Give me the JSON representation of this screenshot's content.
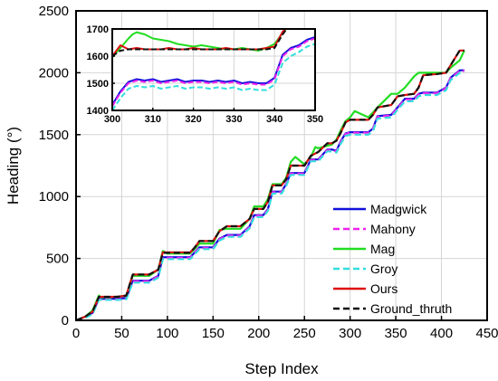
{
  "chart_data": {
    "type": "line",
    "title": "",
    "xlabel": "Step Index",
    "ylabel": "Heading (°)",
    "xlim": [
      0,
      450
    ],
    "ylim": [
      0,
      2500
    ],
    "xticks": [
      0,
      50,
      100,
      150,
      200,
      250,
      300,
      350,
      400,
      450
    ],
    "yticks": [
      0,
      500,
      1000,
      1500,
      2000,
      2500
    ],
    "grid": true,
    "legend_position": "bottom-right",
    "series": [
      {
        "name": "Madgwick",
        "color": "#1010dd",
        "dash": "solid",
        "x": [
          0,
          10,
          18,
          25,
          45,
          55,
          62,
          80,
          90,
          95,
          125,
          130,
          135,
          150,
          157,
          165,
          180,
          190,
          195,
          205,
          210,
          215,
          225,
          230,
          235,
          250,
          257,
          265,
          275,
          280,
          285,
          290,
          295,
          300,
          320,
          325,
          330,
          345,
          352,
          360,
          370,
          375,
          380,
          395,
          405,
          410,
          420,
          425
        ],
        "y": [
          0,
          30,
          60,
          175,
          175,
          180,
          320,
          320,
          360,
          510,
          510,
          550,
          590,
          590,
          660,
          690,
          690,
          760,
          850,
          850,
          900,
          1040,
          1040,
          1100,
          1190,
          1190,
          1300,
          1300,
          1380,
          1380,
          1370,
          1450,
          1510,
          1520,
          1520,
          1550,
          1650,
          1660,
          1720,
          1790,
          1790,
          1830,
          1840,
          1840,
          1880,
          1960,
          2020,
          2020
        ]
      },
      {
        "name": "Mahony",
        "color": "#ee22ee",
        "dash": "dash",
        "x": [
          0,
          10,
          18,
          25,
          45,
          55,
          62,
          80,
          90,
          95,
          125,
          130,
          135,
          150,
          157,
          165,
          180,
          190,
          195,
          205,
          210,
          215,
          225,
          230,
          235,
          250,
          257,
          265,
          275,
          280,
          285,
          290,
          295,
          300,
          320,
          325,
          330,
          345,
          352,
          360,
          370,
          375,
          380,
          395,
          405,
          410,
          420,
          425
        ],
        "y": [
          0,
          25,
          55,
          170,
          170,
          175,
          315,
          315,
          355,
          505,
          505,
          545,
          585,
          585,
          655,
          685,
          685,
          755,
          845,
          845,
          895,
          1035,
          1035,
          1095,
          1185,
          1185,
          1295,
          1295,
          1375,
          1375,
          1365,
          1445,
          1505,
          1515,
          1515,
          1545,
          1645,
          1655,
          1715,
          1785,
          1785,
          1825,
          1835,
          1835,
          1875,
          1955,
          2015,
          2015
        ]
      },
      {
        "name": "Mag",
        "color": "#22dd22",
        "dash": "solid",
        "x": [
          0,
          10,
          18,
          25,
          28,
          45,
          55,
          62,
          80,
          90,
          95,
          100,
          125,
          130,
          135,
          150,
          157,
          165,
          180,
          190,
          195,
          205,
          210,
          215,
          225,
          230,
          235,
          240,
          250,
          257,
          262,
          265,
          275,
          280,
          285,
          290,
          295,
          300,
          305,
          320,
          325,
          330,
          345,
          352,
          360,
          370,
          375,
          380,
          395,
          405,
          410,
          420,
          425
        ],
        "y": [
          0,
          30,
          80,
          200,
          185,
          190,
          200,
          360,
          360,
          410,
          560,
          540,
          540,
          580,
          620,
          620,
          730,
          740,
          740,
          820,
          920,
          920,
          980,
          1100,
          1100,
          1150,
          1280,
          1320,
          1260,
          1320,
          1400,
          1390,
          1410,
          1420,
          1460,
          1540,
          1610,
          1640,
          1690,
          1640,
          1680,
          1720,
          1830,
          1830,
          1880,
          1970,
          2000,
          2000,
          2000,
          2000,
          2040,
          2100,
          2180
        ]
      },
      {
        "name": "Groy",
        "color": "#33dddd",
        "dash": "dash",
        "x": [
          0,
          10,
          18,
          25,
          45,
          55,
          62,
          80,
          90,
          95,
          125,
          130,
          135,
          150,
          157,
          165,
          180,
          190,
          195,
          205,
          210,
          215,
          225,
          230,
          235,
          250,
          257,
          265,
          275,
          280,
          285,
          290,
          295,
          300,
          320,
          325,
          330,
          345,
          352,
          360,
          370,
          375,
          380,
          395,
          405,
          410,
          420,
          425
        ],
        "y": [
          0,
          20,
          50,
          165,
          165,
          170,
          305,
          305,
          345,
          495,
          495,
          535,
          575,
          575,
          645,
          675,
          675,
          745,
          835,
          835,
          885,
          1025,
          1025,
          1085,
          1175,
          1175,
          1285,
          1285,
          1365,
          1365,
          1355,
          1430,
          1490,
          1500,
          1500,
          1530,
          1630,
          1640,
          1700,
          1770,
          1770,
          1810,
          1820,
          1820,
          1860,
          1940,
          2000,
          2000
        ]
      },
      {
        "name": "Ours",
        "color": "#dd1111",
        "dash": "solid",
        "x": [
          0,
          10,
          18,
          25,
          45,
          55,
          62,
          80,
          90,
          95,
          125,
          130,
          135,
          150,
          157,
          165,
          180,
          190,
          195,
          205,
          210,
          215,
          225,
          230,
          235,
          250,
          257,
          265,
          275,
          280,
          285,
          290,
          295,
          300,
          320,
          325,
          330,
          345,
          352,
          360,
          370,
          375,
          380,
          395,
          405,
          410,
          420,
          425
        ],
        "y": [
          0,
          30,
          70,
          190,
          190,
          200,
          370,
          370,
          410,
          550,
          550,
          590,
          640,
          640,
          720,
          760,
          760,
          820,
          900,
          900,
          960,
          1090,
          1090,
          1140,
          1250,
          1250,
          1330,
          1360,
          1430,
          1430,
          1450,
          1520,
          1600,
          1620,
          1620,
          1660,
          1720,
          1740,
          1810,
          1820,
          1830,
          1880,
          1980,
          1990,
          2000,
          2060,
          2180,
          2180
        ]
      },
      {
        "name": "Ground_thruth",
        "color": "#111111",
        "dash": "dash",
        "x": [
          0,
          10,
          18,
          25,
          45,
          55,
          62,
          80,
          90,
          95,
          125,
          130,
          135,
          150,
          157,
          165,
          180,
          190,
          195,
          205,
          210,
          215,
          225,
          230,
          235,
          250,
          257,
          265,
          275,
          280,
          285,
          290,
          295,
          300,
          320,
          325,
          330,
          345,
          352,
          360,
          370,
          375,
          380,
          395,
          405,
          410,
          420,
          425
        ],
        "y": [
          0,
          30,
          70,
          190,
          190,
          200,
          370,
          370,
          410,
          545,
          545,
          590,
          640,
          640,
          720,
          760,
          760,
          820,
          900,
          900,
          960,
          1090,
          1090,
          1140,
          1250,
          1250,
          1330,
          1360,
          1430,
          1430,
          1450,
          1520,
          1600,
          1620,
          1620,
          1660,
          1720,
          1740,
          1810,
          1820,
          1830,
          1880,
          1980,
          1990,
          2000,
          2060,
          2180,
          2180
        ]
      }
    ],
    "inset": {
      "xlim": [
        300,
        350
      ],
      "ylim": [
        1400,
        1700
      ],
      "xticks": [
        300,
        310,
        320,
        330,
        340,
        350
      ],
      "yticks": [
        1400,
        1500,
        1600,
        1700
      ],
      "grid": true,
      "series": [
        {
          "name": "Madgwick",
          "x": [
            300,
            302,
            304,
            306,
            308,
            310,
            312,
            314,
            316,
            318,
            320,
            322,
            324,
            326,
            328,
            330,
            332,
            334,
            336,
            338,
            340,
            342,
            344,
            346,
            348,
            350
          ],
          "y": [
            1420,
            1470,
            1505,
            1515,
            1510,
            1515,
            1505,
            1510,
            1515,
            1505,
            1510,
            1510,
            1505,
            1510,
            1505,
            1510,
            1500,
            1505,
            1500,
            1500,
            1520,
            1605,
            1630,
            1640,
            1660,
            1670
          ]
        },
        {
          "name": "Mahony",
          "x": [
            300,
            302,
            304,
            306,
            308,
            310,
            312,
            314,
            316,
            318,
            320,
            322,
            324,
            326,
            328,
            330,
            332,
            334,
            336,
            338,
            340,
            342,
            344,
            346,
            348,
            350
          ],
          "y": [
            1415,
            1465,
            1500,
            1510,
            1505,
            1510,
            1500,
            1505,
            1510,
            1500,
            1505,
            1505,
            1500,
            1505,
            1500,
            1505,
            1495,
            1500,
            1495,
            1495,
            1515,
            1600,
            1625,
            1635,
            1655,
            1665
          ]
        },
        {
          "name": "Mag",
          "x": [
            300,
            302,
            304,
            305,
            306,
            308,
            310,
            312,
            314,
            316,
            318,
            320,
            322,
            324,
            326,
            328,
            330,
            332,
            334,
            336,
            338,
            340,
            342,
            344
          ],
          "y": [
            1595,
            1630,
            1665,
            1680,
            1688,
            1680,
            1665,
            1660,
            1655,
            1645,
            1640,
            1635,
            1640,
            1635,
            1630,
            1625,
            1625,
            1630,
            1625,
            1620,
            1630,
            1645,
            1685,
            1720
          ]
        },
        {
          "name": "Groy",
          "x": [
            300,
            302,
            304,
            306,
            308,
            310,
            312,
            314,
            316,
            318,
            320,
            322,
            324,
            326,
            328,
            330,
            332,
            334,
            336,
            338,
            340,
            342,
            344,
            346,
            348,
            350
          ],
          "y": [
            1400,
            1445,
            1480,
            1490,
            1485,
            1490,
            1480,
            1485,
            1490,
            1480,
            1485,
            1485,
            1480,
            1485,
            1480,
            1485,
            1475,
            1480,
            1475,
            1475,
            1495,
            1575,
            1600,
            1615,
            1635,
            1645
          ]
        },
        {
          "name": "Ours",
          "x": [
            300,
            302,
            304,
            306,
            308,
            310,
            312,
            314,
            316,
            318,
            320,
            322,
            324,
            326,
            328,
            330,
            332,
            334,
            336,
            338,
            340,
            342,
            344
          ],
          "y": [
            1600,
            1640,
            1625,
            1630,
            1625,
            1625,
            1625,
            1630,
            1625,
            1625,
            1630,
            1625,
            1625,
            1625,
            1630,
            1625,
            1625,
            1625,
            1625,
            1630,
            1635,
            1690,
            1720
          ]
        },
        {
          "name": "Ground_thruth",
          "x": [
            300,
            302,
            304,
            306,
            308,
            310,
            312,
            314,
            316,
            318,
            320,
            322,
            324,
            326,
            328,
            330,
            332,
            334,
            336,
            338,
            340,
            342,
            344
          ],
          "y": [
            1600,
            1620,
            1625,
            1625,
            1625,
            1625,
            1625,
            1625,
            1625,
            1625,
            1625,
            1625,
            1625,
            1625,
            1625,
            1625,
            1625,
            1625,
            1625,
            1625,
            1630,
            1680,
            1720
          ]
        }
      ]
    }
  }
}
